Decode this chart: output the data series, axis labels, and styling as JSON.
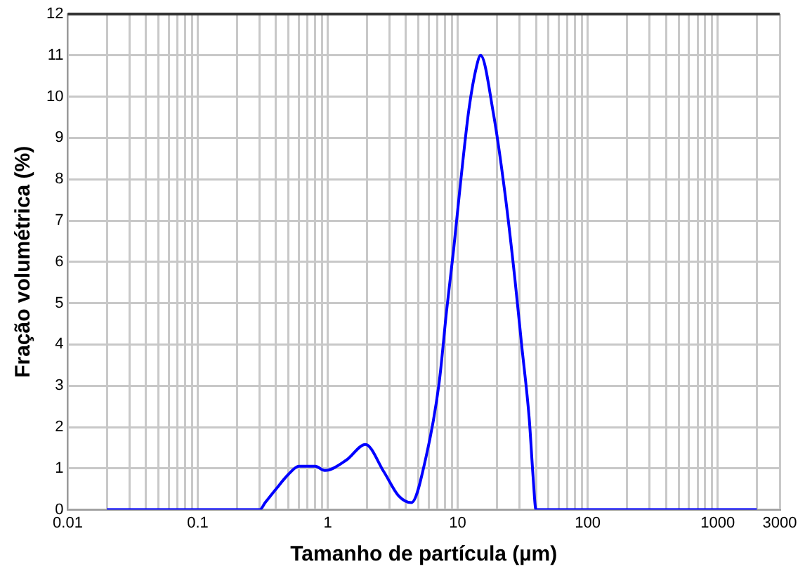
{
  "chart_data": {
    "type": "line",
    "xlabel": "Tamanho de partícula (µm)",
    "ylabel": "Fração volumétrica (%)",
    "log": "x",
    "grid": true,
    "legend": false,
    "marker": "none",
    "line_style": "solid",
    "xlim": [
      0.01,
      3000
    ],
    "ylim": [
      0,
      12
    ],
    "xticks": [
      0.01,
      {
        "value": 0.02,
        "label": null
      },
      {
        "value": 0.03,
        "label": null
      },
      {
        "value": 0.04,
        "label": null
      },
      {
        "value": 0.05,
        "label": null
      },
      {
        "value": 0.06,
        "label": null
      },
      {
        "value": 0.07,
        "label": null
      },
      {
        "value": 0.08,
        "label": null
      },
      {
        "value": 0.09,
        "label": null
      },
      0.1,
      {
        "value": 0.2,
        "label": null
      },
      {
        "value": 0.3,
        "label": null
      },
      {
        "value": 0.4,
        "label": null
      },
      {
        "value": 0.5,
        "label": null
      },
      {
        "value": 0.6,
        "label": null
      },
      {
        "value": 0.7,
        "label": null
      },
      {
        "value": 0.8,
        "label": null
      },
      {
        "value": 0.9,
        "label": null
      },
      1,
      {
        "value": 2,
        "label": null
      },
      {
        "value": 3,
        "label": null
      },
      {
        "value": 4,
        "label": null
      },
      {
        "value": 5,
        "label": null
      },
      {
        "value": 6,
        "label": null
      },
      {
        "value": 7,
        "label": null
      },
      {
        "value": 8,
        "label": null
      },
      {
        "value": 9,
        "label": null
      },
      10,
      {
        "value": 20,
        "label": null
      },
      {
        "value": 30,
        "label": null
      },
      {
        "value": 40,
        "label": null
      },
      {
        "value": 50,
        "label": null
      },
      {
        "value": 60,
        "label": null
      },
      {
        "value": 70,
        "label": null
      },
      {
        "value": 80,
        "label": null
      },
      {
        "value": 90,
        "label": null
      },
      100,
      {
        "value": 200,
        "label": null
      },
      {
        "value": 300,
        "label": null
      },
      {
        "value": 400,
        "label": null
      },
      {
        "value": 500,
        "label": null
      },
      {
        "value": 600,
        "label": null
      },
      {
        "value": 700,
        "label": null
      },
      {
        "value": 800,
        "label": null
      },
      {
        "value": 900,
        "label": null
      },
      1000,
      {
        "value": 2000,
        "label": null
      },
      3000
    ],
    "yticks": [
      0,
      1,
      2,
      3,
      4,
      5,
      6,
      7,
      8,
      9,
      10,
      11,
      12
    ],
    "x": [
      0.02,
      0.1,
      0.3,
      0.33,
      0.4,
      0.5,
      0.6,
      0.8,
      0.95,
      1.39,
      1.95,
      2.7,
      3.5,
      4.4,
      5.7,
      7.2,
      8.2,
      9.3,
      10.5,
      12.2,
      14,
      15,
      18.8,
      23,
      27.5,
      31,
      35.5,
      38,
      40,
      100,
      1000,
      2000
    ],
    "series": [
      {
        "color": "#0000ff",
        "values": [
          0,
          0,
          0,
          0.17,
          0.5,
          0.86,
          1.05,
          1.05,
          0.95,
          1.2,
          1.58,
          0.92,
          0.34,
          0.17,
          1.27,
          3.08,
          4.8,
          6.3,
          7.9,
          9.7,
          10.75,
          11.0,
          9.6,
          7.7,
          5.6,
          4.0,
          2.2,
          0.8,
          0,
          0,
          0,
          0
        ]
      }
    ]
  }
}
